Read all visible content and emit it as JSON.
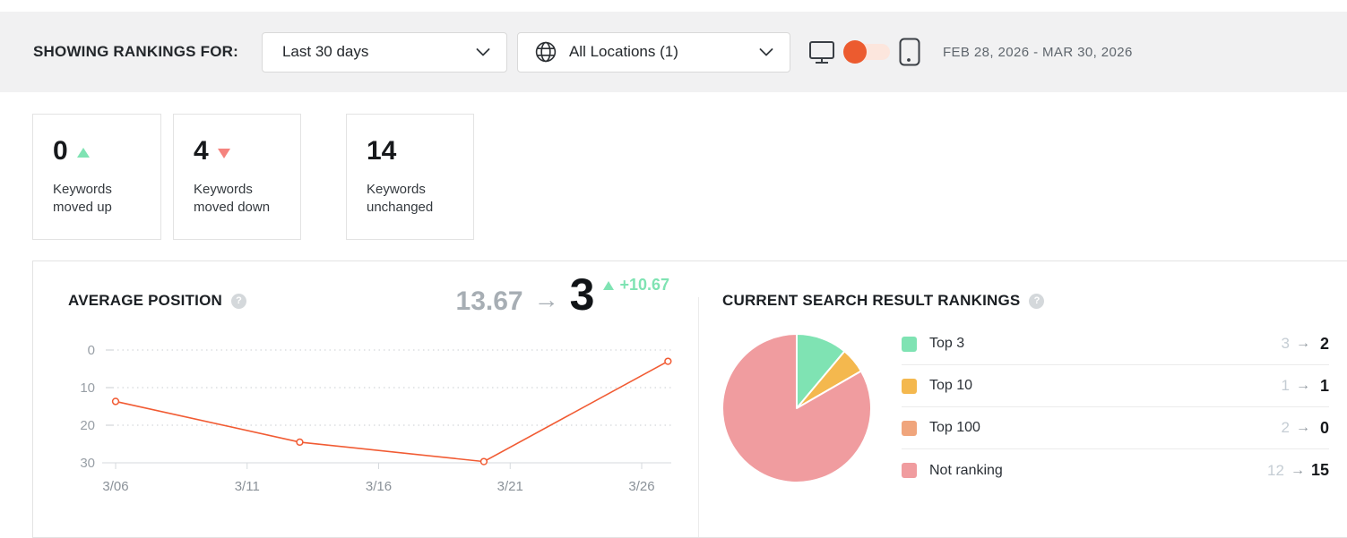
{
  "theme": {
    "accent_orange": "#ec5b2f",
    "mint_green": "#7fe3b3",
    "coral_red": "#f5837e",
    "line_orange": "#f15b33"
  },
  "filter_bar": {
    "label": "SHOWING RANKINGS FOR:",
    "date_range_dropdown": {
      "value": "Last 30 days"
    },
    "locations_dropdown": {
      "value": "All Locations (1)",
      "icon": "globe-icon"
    },
    "device_toggle": {
      "state": "desktop",
      "icons": [
        "desktop-icon",
        "mobile-icon"
      ]
    },
    "date_range_text": "FEB 28, 2026 - MAR 30, 2026"
  },
  "summary_cards": [
    {
      "value": "0",
      "trend": "up",
      "label": "Keywords moved up"
    },
    {
      "value": "4",
      "trend": "down",
      "label": "Keywords moved down"
    },
    {
      "value": "14",
      "trend": "none",
      "label": "Keywords unchanged"
    }
  ],
  "average_position": {
    "title": "AVERAGE POSITION",
    "previous": "13.67",
    "arrow": "→",
    "current": "3",
    "change": "+10.67",
    "trend": "up"
  },
  "rankings": {
    "title": "CURRENT SEARCH RESULT RANKINGS",
    "rows": [
      {
        "label": "Top 3",
        "color": "#7fe3b3",
        "from": "3",
        "arrow": "→",
        "to": "2"
      },
      {
        "label": "Top 10",
        "color": "#f4b84e",
        "from": "1",
        "arrow": "→",
        "to": "1"
      },
      {
        "label": "Top 100",
        "color": "#f0a57c",
        "from": "2",
        "arrow": "→",
        "to": "0"
      },
      {
        "label": "Not ranking",
        "color": "#f09c9f",
        "from": "12",
        "arrow": "→",
        "to": "15"
      }
    ]
  },
  "chart_data": [
    {
      "type": "line",
      "title": "Average Position",
      "x": [
        "3/06",
        "3/13",
        "3/20",
        "3/27"
      ],
      "x_days": [
        0,
        7,
        14,
        21
      ],
      "values": [
        13.67,
        24.5,
        29.67,
        3
      ],
      "xticks": {
        "labels": [
          "3/06",
          "3/11",
          "3/16",
          "3/21",
          "3/26"
        ],
        "days": [
          0,
          5,
          10,
          15,
          20
        ]
      },
      "yticks": [
        0,
        10,
        20,
        30
      ],
      "ylim": [
        0,
        30
      ],
      "y_inverted": true,
      "grid": "dotted-horizontal",
      "line_color": "#f15b33",
      "marker": "open-circle"
    },
    {
      "type": "pie",
      "title": "Current Search Result Rankings",
      "labels": [
        "Top 3",
        "Top 10",
        "Top 100",
        "Not ranking"
      ],
      "values": [
        2,
        1,
        0,
        15
      ],
      "colors": [
        "#7fe3b3",
        "#f4b84e",
        "#f0a57c",
        "#f09c9f"
      ],
      "start_angle_deg": 0,
      "direction": "clockwise",
      "legend_position": "right"
    }
  ]
}
